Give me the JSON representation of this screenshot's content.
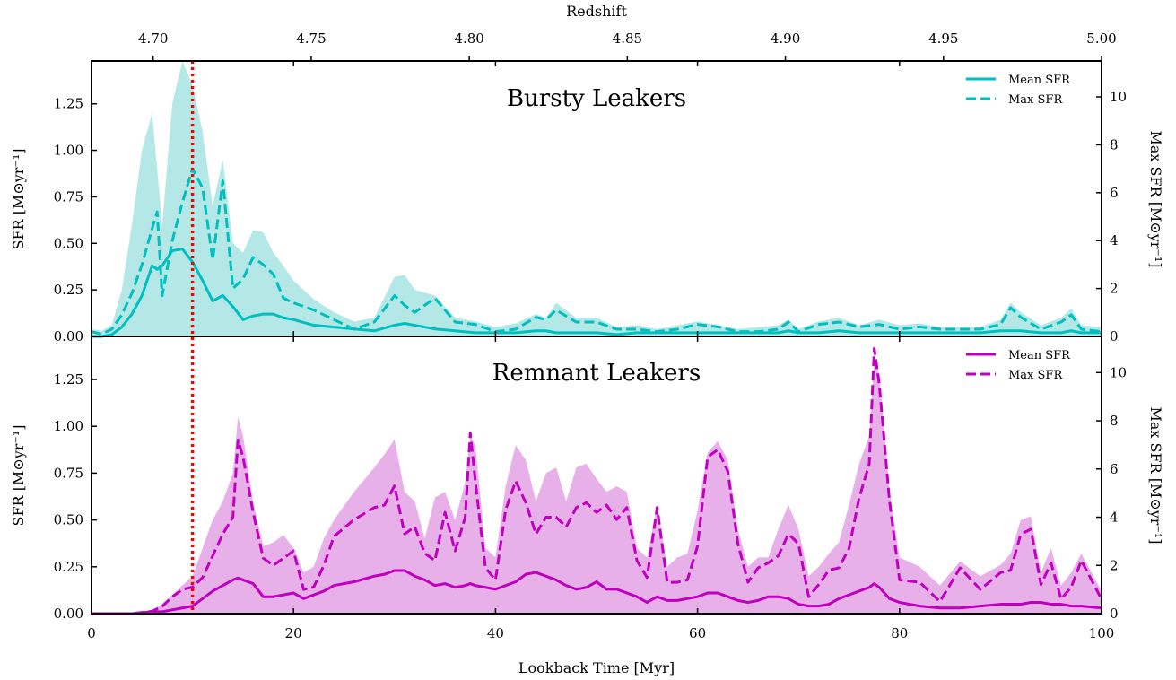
{
  "chart_data": {
    "type": "line",
    "xlabel": "Lookback Time [Myr]",
    "xlim": [
      0,
      100
    ],
    "x_ticks": [
      0,
      20,
      40,
      60,
      80,
      100
    ],
    "top_axis": {
      "label": "Redshift",
      "ticks": [
        "4.70",
        "4.75",
        "4.80",
        "4.85",
        "4.90",
        "4.95",
        "5.00"
      ],
      "range": [
        4.6805,
        5.0
      ]
    },
    "vline": {
      "x": 10,
      "color": "#ff0000",
      "style": "dotted"
    },
    "panels": [
      {
        "title": "Bursty Leakers",
        "color": "#00bfbf",
        "fill_color": "#b3e8e6",
        "ylabel_left": "SFR [M⊙yr⁻¹]",
        "ylabel_right": "Max SFR [M⊙yr⁻¹]",
        "ylim_left": [
          0,
          1.48
        ],
        "y_ticks_left": [
          "0.00",
          "0.25",
          "0.50",
          "0.75",
          "1.00",
          "1.25"
        ],
        "ylim_right": [
          0,
          11.5
        ],
        "y_ticks_right": [
          "0",
          "2",
          "4",
          "6",
          "8",
          "10"
        ],
        "legend": [
          "Mean SFR",
          "Max SFR"
        ],
        "x": [
          0,
          1,
          2,
          3,
          4,
          5,
          6,
          6.5,
          7,
          8,
          9,
          10,
          11,
          12,
          13,
          14,
          15,
          16,
          17,
          18,
          19,
          20,
          22,
          24,
          26,
          28,
          30,
          31,
          32,
          34,
          36,
          38,
          40,
          42,
          44,
          45,
          46,
          48,
          50,
          52,
          54,
          56,
          58,
          60,
          62,
          64,
          66,
          68,
          69,
          70,
          72,
          74,
          76,
          78,
          80,
          82,
          84,
          86,
          88,
          90,
          91,
          92,
          94,
          96,
          97,
          98,
          100
        ],
        "mean_sfr": [
          0.0,
          0.0,
          0.01,
          0.05,
          0.12,
          0.22,
          0.38,
          0.36,
          0.38,
          0.46,
          0.47,
          0.4,
          0.3,
          0.19,
          0.22,
          0.16,
          0.09,
          0.11,
          0.12,
          0.12,
          0.1,
          0.09,
          0.06,
          0.05,
          0.04,
          0.03,
          0.06,
          0.07,
          0.06,
          0.04,
          0.03,
          0.02,
          0.02,
          0.02,
          0.03,
          0.03,
          0.02,
          0.02,
          0.02,
          0.01,
          0.02,
          0.02,
          0.02,
          0.02,
          0.02,
          0.02,
          0.02,
          0.02,
          0.03,
          0.02,
          0.02,
          0.03,
          0.02,
          0.02,
          0.02,
          0.02,
          0.02,
          0.02,
          0.02,
          0.03,
          0.03,
          0.03,
          0.02,
          0.02,
          0.03,
          0.02,
          0.02
        ],
        "max_sfr": [
          0.2,
          0.1,
          0.3,
          0.9,
          1.8,
          3.0,
          4.5,
          5.2,
          1.7,
          4.0,
          5.6,
          7.0,
          6.2,
          3.2,
          6.5,
          2.0,
          2.4,
          3.3,
          3.0,
          2.6,
          1.6,
          1.4,
          1.1,
          0.7,
          0.3,
          0.6,
          1.7,
          1.3,
          1.0,
          1.6,
          0.6,
          0.5,
          0.2,
          0.3,
          0.8,
          0.7,
          1.1,
          0.6,
          0.6,
          0.3,
          0.3,
          0.2,
          0.3,
          0.5,
          0.4,
          0.2,
          0.2,
          0.3,
          0.6,
          0.2,
          0.5,
          0.6,
          0.4,
          0.5,
          0.3,
          0.4,
          0.3,
          0.3,
          0.3,
          0.5,
          1.2,
          0.8,
          0.3,
          0.6,
          0.9,
          0.3,
          0.2
        ],
        "band_upper": [
          0.04,
          0.03,
          0.06,
          0.25,
          0.6,
          1.0,
          1.2,
          0.9,
          0.6,
          1.25,
          1.48,
          1.35,
          1.1,
          0.7,
          0.95,
          0.5,
          0.45,
          0.57,
          0.56,
          0.45,
          0.38,
          0.3,
          0.2,
          0.13,
          0.08,
          0.1,
          0.32,
          0.33,
          0.25,
          0.22,
          0.1,
          0.08,
          0.05,
          0.07,
          0.12,
          0.1,
          0.18,
          0.1,
          0.1,
          0.05,
          0.06,
          0.04,
          0.06,
          0.08,
          0.06,
          0.04,
          0.05,
          0.06,
          0.09,
          0.04,
          0.08,
          0.1,
          0.06,
          0.09,
          0.06,
          0.07,
          0.05,
          0.05,
          0.05,
          0.09,
          0.18,
          0.13,
          0.06,
          0.1,
          0.15,
          0.06,
          0.05
        ]
      },
      {
        "title": "Remnant Leakers",
        "color": "#bf00bf",
        "fill_color": "#e8b0e8",
        "ylabel_left": "SFR [M⊙yr⁻¹]",
        "ylabel_right": "Max SFR [M⊙yr⁻¹]",
        "ylim_left": [
          0,
          1.48
        ],
        "y_ticks_left": [
          "0.00",
          "0.25",
          "0.50",
          "0.75",
          "1.00",
          "1.25"
        ],
        "ylim_right": [
          0,
          11.5
        ],
        "y_ticks_right": [
          "0",
          "2",
          "4",
          "6",
          "8",
          "10"
        ],
        "legend": [
          "Mean SFR",
          "Max SFR"
        ],
        "x": [
          0,
          2,
          4,
          6,
          7,
          8,
          9,
          10,
          11,
          12,
          13,
          14,
          14.5,
          15,
          16,
          17,
          18,
          19,
          20,
          21,
          22,
          23,
          24,
          26,
          28,
          29,
          30,
          31,
          32,
          33,
          34,
          35,
          36,
          37,
          37.5,
          38,
          39,
          40,
          41,
          42,
          43,
          44,
          45,
          46,
          47,
          48,
          49,
          50,
          51,
          52,
          53,
          54,
          55,
          56,
          57,
          58,
          59,
          60,
          61,
          62,
          63,
          64,
          65,
          66,
          67,
          68,
          69,
          70,
          71,
          72,
          73,
          74,
          75,
          76,
          77,
          77.5,
          78,
          79,
          80,
          82,
          84,
          86,
          88,
          90,
          91,
          92,
          93,
          94,
          95,
          96,
          97,
          98,
          100
        ],
        "mean_sfr": [
          0.0,
          0.0,
          0.0,
          0.01,
          0.01,
          0.02,
          0.03,
          0.04,
          0.08,
          0.12,
          0.15,
          0.18,
          0.19,
          0.18,
          0.16,
          0.09,
          0.09,
          0.1,
          0.11,
          0.08,
          0.1,
          0.12,
          0.15,
          0.17,
          0.2,
          0.21,
          0.23,
          0.23,
          0.2,
          0.18,
          0.15,
          0.16,
          0.14,
          0.15,
          0.16,
          0.15,
          0.14,
          0.13,
          0.15,
          0.17,
          0.21,
          0.22,
          0.2,
          0.18,
          0.15,
          0.13,
          0.14,
          0.17,
          0.13,
          0.13,
          0.11,
          0.09,
          0.06,
          0.09,
          0.07,
          0.07,
          0.08,
          0.09,
          0.11,
          0.11,
          0.09,
          0.07,
          0.06,
          0.07,
          0.09,
          0.09,
          0.08,
          0.05,
          0.04,
          0.04,
          0.05,
          0.08,
          0.1,
          0.12,
          0.14,
          0.16,
          0.14,
          0.08,
          0.06,
          0.04,
          0.03,
          0.03,
          0.04,
          0.05,
          0.05,
          0.05,
          0.06,
          0.06,
          0.05,
          0.05,
          0.04,
          0.04,
          0.03
        ],
        "max_sfr": [
          0.0,
          0.0,
          0.0,
          0.1,
          0.3,
          0.7,
          1.0,
          1.1,
          1.5,
          2.4,
          3.3,
          4.0,
          7.2,
          6.5,
          4.2,
          2.3,
          2.0,
          2.3,
          2.6,
          1.0,
          1.1,
          2.0,
          3.2,
          3.9,
          4.4,
          4.5,
          5.3,
          3.3,
          3.6,
          2.5,
          2.2,
          4.2,
          2.6,
          4.0,
          7.5,
          5.5,
          1.9,
          1.4,
          4.3,
          5.5,
          4.6,
          3.3,
          4.0,
          4.0,
          3.6,
          4.4,
          4.6,
          4.2,
          4.5,
          3.9,
          4.4,
          2.2,
          1.5,
          4.4,
          1.3,
          1.3,
          1.4,
          2.8,
          6.5,
          6.8,
          5.9,
          2.9,
          1.3,
          1.9,
          2.1,
          2.4,
          3.3,
          2.9,
          0.7,
          1.2,
          1.8,
          1.9,
          2.7,
          4.8,
          6.2,
          11.0,
          9.5,
          4.7,
          1.4,
          1.3,
          0.5,
          1.9,
          1.0,
          1.7,
          1.8,
          3.3,
          3.5,
          1.2,
          2.1,
          0.6,
          1.1,
          2.2,
          0.6
        ],
        "band_upper": [
          0.0,
          0.0,
          0.0,
          0.02,
          0.05,
          0.1,
          0.15,
          0.2,
          0.35,
          0.5,
          0.6,
          0.75,
          1.05,
          0.95,
          0.6,
          0.36,
          0.38,
          0.42,
          0.35,
          0.22,
          0.25,
          0.4,
          0.5,
          0.65,
          0.78,
          0.85,
          0.93,
          0.65,
          0.6,
          0.4,
          0.62,
          0.65,
          0.5,
          0.7,
          0.95,
          0.9,
          0.35,
          0.3,
          0.68,
          0.9,
          0.82,
          0.6,
          0.75,
          0.78,
          0.6,
          0.78,
          0.8,
          0.72,
          0.65,
          0.68,
          0.65,
          0.35,
          0.3,
          0.58,
          0.25,
          0.3,
          0.32,
          0.55,
          0.86,
          0.92,
          0.82,
          0.45,
          0.25,
          0.3,
          0.3,
          0.45,
          0.58,
          0.45,
          0.2,
          0.25,
          0.32,
          0.38,
          0.58,
          0.8,
          0.95,
          1.35,
          1.28,
          0.66,
          0.3,
          0.25,
          0.15,
          0.28,
          0.2,
          0.26,
          0.32,
          0.5,
          0.52,
          0.22,
          0.35,
          0.15,
          0.22,
          0.32,
          0.12
        ]
      }
    ]
  }
}
